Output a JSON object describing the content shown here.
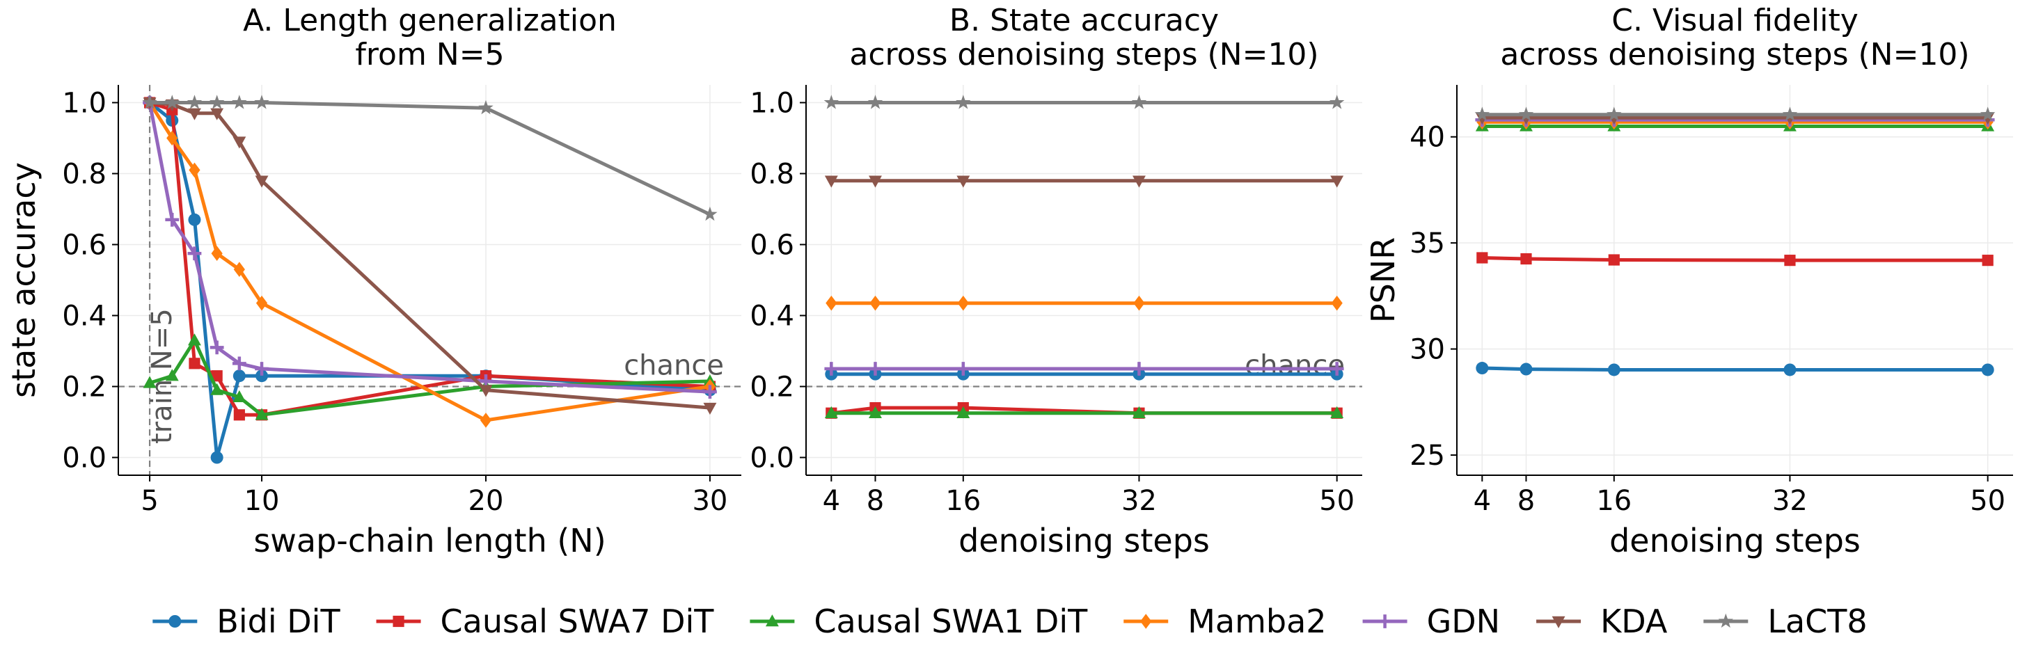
{
  "colors": {
    "Bidi DiT": "#1f77b4",
    "Causal SWA7 DiT": "#d62728",
    "Causal SWA1 DiT": "#2ca02c",
    "Mamba2": "#ff7f0e",
    "GDN": "#9467bd",
    "KDA": "#8c564b",
    "LaCT8": "#7f7f7f"
  },
  "markers": {
    "Bidi DiT": "circle",
    "Causal SWA7 DiT": "square",
    "Causal SWA1 DiT": "triangle-up",
    "Mamba2": "diamond",
    "GDN": "plus",
    "KDA": "triangle-down",
    "LaCT8": "star"
  },
  "legend": {
    "placement": "bottom-center",
    "items": [
      "Bidi DiT",
      "Causal SWA7 DiT",
      "Causal SWA1 DiT",
      "Mamba2",
      "GDN",
      "KDA",
      "LaCT8"
    ]
  },
  "chart_data": [
    {
      "type": "line",
      "title": "A. Length generalization\nfrom N=5",
      "xlabel": "swap-chain length (N)",
      "ylabel": "state accuracy",
      "xlim": [
        3.6,
        31.4
      ],
      "ylim": [
        -0.05,
        1.05
      ],
      "xticks": [
        5,
        10,
        20,
        30
      ],
      "yticks": [
        0.0,
        0.2,
        0.4,
        0.6,
        0.8,
        1.0
      ],
      "grid": true,
      "hline": {
        "y": 0.2,
        "label": "chance"
      },
      "vline": {
        "x": 5,
        "label": "train N=5"
      },
      "series": [
        {
          "name": "Bidi DiT",
          "x": [
            5,
            6,
            7,
            8,
            9,
            10,
            20,
            30
          ],
          "y": [
            1.0,
            0.95,
            0.67,
            0.0,
            0.23,
            0.23,
            0.23,
            0.19
          ]
        },
        {
          "name": "Causal SWA7 DiT",
          "x": [
            5,
            6,
            7,
            8,
            9,
            10,
            20,
            30
          ],
          "y": [
            1.0,
            0.98,
            0.265,
            0.23,
            0.12,
            0.12,
            0.23,
            0.2
          ]
        },
        {
          "name": "Causal SWA1 DiT",
          "x": [
            5,
            6,
            7,
            8,
            9,
            10,
            20,
            30
          ],
          "y": [
            0.21,
            0.23,
            0.33,
            0.19,
            0.17,
            0.12,
            0.2,
            0.215
          ]
        },
        {
          "name": "Mamba2",
          "x": [
            5,
            6,
            7,
            8,
            9,
            10,
            20,
            30
          ],
          "y": [
            1.0,
            0.9,
            0.81,
            0.575,
            0.53,
            0.435,
            0.105,
            0.2
          ]
        },
        {
          "name": "GDN",
          "x": [
            5,
            6,
            7,
            8,
            9,
            10,
            20,
            30
          ],
          "y": [
            1.0,
            0.67,
            0.575,
            0.31,
            0.265,
            0.25,
            0.215,
            0.185
          ]
        },
        {
          "name": "KDA",
          "x": [
            5,
            6,
            7,
            8,
            9,
            10,
            20,
            30
          ],
          "y": [
            1.0,
            0.995,
            0.97,
            0.97,
            0.89,
            0.78,
            0.19,
            0.14
          ]
        },
        {
          "name": "LaCT8",
          "x": [
            5,
            6,
            7,
            8,
            9,
            10,
            20,
            30
          ],
          "y": [
            1.0,
            1.0,
            1.0,
            1.0,
            1.0,
            1.0,
            0.985,
            0.685
          ]
        }
      ]
    },
    {
      "type": "line",
      "title": "B. State accuracy\nacross denoising steps (N=10)",
      "xlabel": "denoising steps",
      "ylabel": "",
      "xlim": [
        1.7,
        52.3
      ],
      "ylim": [
        -0.05,
        1.05
      ],
      "xticks": [
        4,
        8,
        16,
        32,
        50
      ],
      "yticks": [
        0.0,
        0.2,
        0.4,
        0.6,
        0.8,
        1.0
      ],
      "grid": true,
      "hline": {
        "y": 0.2,
        "label": "chance"
      },
      "series": [
        {
          "name": "Bidi DiT",
          "x": [
            4,
            8,
            16,
            32,
            50
          ],
          "y": [
            0.235,
            0.235,
            0.235,
            0.235,
            0.235
          ]
        },
        {
          "name": "Causal SWA7 DiT",
          "x": [
            4,
            8,
            16,
            32,
            50
          ],
          "y": [
            0.125,
            0.14,
            0.14,
            0.125,
            0.125
          ]
        },
        {
          "name": "Causal SWA1 DiT",
          "x": [
            4,
            8,
            16,
            32,
            50
          ],
          "y": [
            0.125,
            0.125,
            0.125,
            0.125,
            0.125
          ]
        },
        {
          "name": "Mamba2",
          "x": [
            4,
            8,
            16,
            32,
            50
          ],
          "y": [
            0.435,
            0.435,
            0.435,
            0.435,
            0.435
          ]
        },
        {
          "name": "GDN",
          "x": [
            4,
            8,
            16,
            32,
            50
          ],
          "y": [
            0.25,
            0.25,
            0.25,
            0.25,
            0.25
          ]
        },
        {
          "name": "KDA",
          "x": [
            4,
            8,
            16,
            32,
            50
          ],
          "y": [
            0.78,
            0.78,
            0.78,
            0.78,
            0.78
          ]
        },
        {
          "name": "LaCT8",
          "x": [
            4,
            8,
            16,
            32,
            50
          ],
          "y": [
            1.0,
            1.0,
            1.0,
            1.0,
            1.0
          ]
        }
      ]
    },
    {
      "type": "line",
      "title": "C. Visual fidelity\nacross denoising steps (N=10)",
      "xlabel": "denoising steps",
      "ylabel": "PSNR",
      "xlim": [
        1.7,
        52.3
      ],
      "ylim": [
        24.05,
        42.45
      ],
      "xticks": [
        4,
        8,
        16,
        32,
        50
      ],
      "yticks": [
        25,
        30,
        35,
        40
      ],
      "grid": true,
      "series": [
        {
          "name": "Bidi DiT",
          "x": [
            4,
            8,
            16,
            32,
            50
          ],
          "y": [
            29.1,
            29.05,
            29.02,
            29.02,
            29.02
          ]
        },
        {
          "name": "Causal SWA7 DiT",
          "x": [
            4,
            8,
            16,
            32,
            50
          ],
          "y": [
            34.3,
            34.25,
            34.2,
            34.18,
            34.18
          ]
        },
        {
          "name": "Causal SWA1 DiT",
          "x": [
            4,
            8,
            16,
            32,
            50
          ],
          "y": [
            40.5,
            40.5,
            40.5,
            40.5,
            40.5
          ]
        },
        {
          "name": "Mamba2",
          "x": [
            4,
            8,
            16,
            32,
            50
          ],
          "y": [
            40.7,
            40.7,
            40.7,
            40.7,
            40.7
          ]
        },
        {
          "name": "GDN",
          "x": [
            4,
            8,
            16,
            32,
            50
          ],
          "y": [
            40.8,
            40.8,
            40.8,
            40.8,
            40.8
          ]
        },
        {
          "name": "KDA",
          "x": [
            4,
            8,
            16,
            32,
            50
          ],
          "y": [
            40.9,
            40.9,
            40.9,
            40.9,
            40.9
          ]
        },
        {
          "name": "LaCT8",
          "x": [
            4,
            8,
            16,
            32,
            50
          ],
          "y": [
            41.05,
            41.05,
            41.05,
            41.05,
            41.05
          ]
        }
      ]
    }
  ]
}
